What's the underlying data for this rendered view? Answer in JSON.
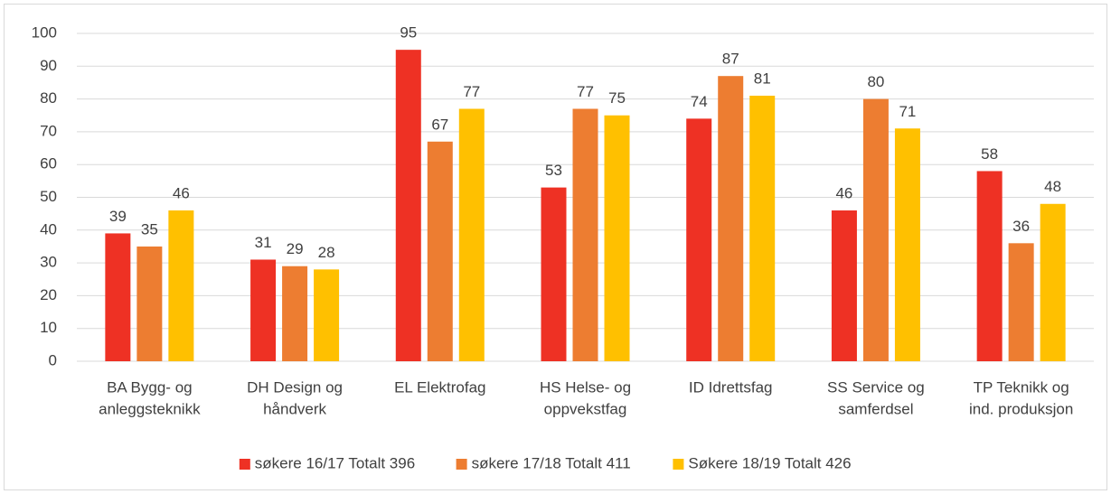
{
  "chart_data": {
    "type": "bar",
    "categories": [
      [
        "BA Bygg- og",
        "anleggsteknikk"
      ],
      [
        "DH Design og",
        "håndverk"
      ],
      [
        "EL Elektrofag"
      ],
      [
        "HS Helse- og",
        "oppvekstfag"
      ],
      [
        "ID Idrettsfag"
      ],
      [
        "SS Service og",
        "samferdsel"
      ],
      [
        "TP Teknikk og",
        "ind. produksjon"
      ]
    ],
    "series": [
      {
        "name": "søkere 16/17 Totalt 396",
        "color": "#ee3124",
        "values": [
          39,
          31,
          95,
          53,
          74,
          46,
          58
        ]
      },
      {
        "name": "søkere 17/18 Totalt 411",
        "color": "#ed7d31",
        "values": [
          35,
          29,
          67,
          77,
          87,
          80,
          36
        ]
      },
      {
        "name": "Søkere 18/19 Totalt 426",
        "color": "#ffc000",
        "values": [
          46,
          28,
          77,
          75,
          81,
          71,
          48
        ]
      }
    ],
    "ylim": [
      0,
      100
    ],
    "yticks": [
      0,
      10,
      20,
      30,
      40,
      50,
      60,
      70,
      80,
      90,
      100
    ],
    "grid": true,
    "legend": "bottom"
  }
}
